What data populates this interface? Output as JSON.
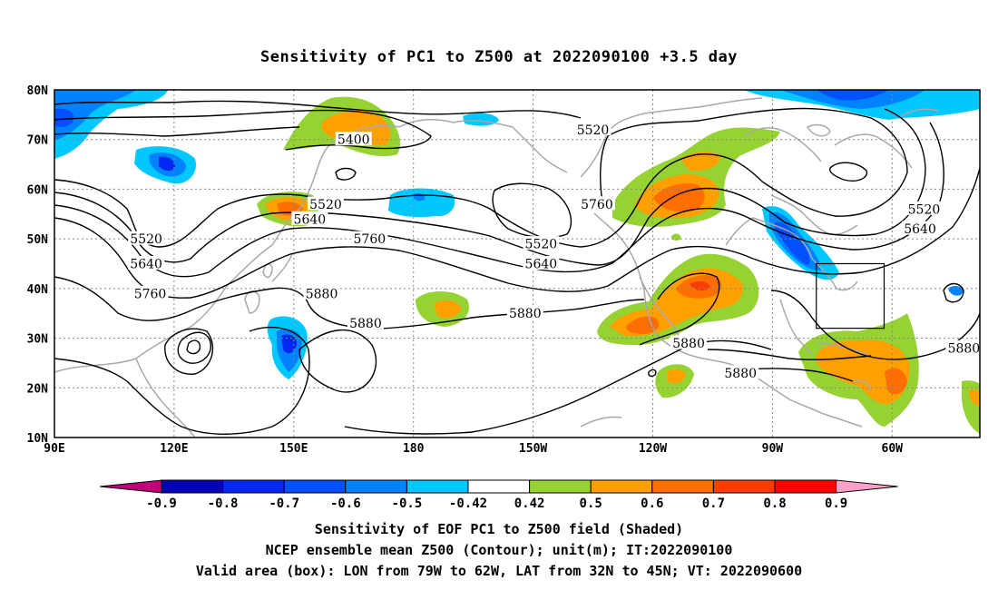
{
  "title": "Sensitivity of PC1 to Z500 at 2022090100 +3.5 day",
  "map": {
    "lon_ticks": [
      "90E",
      "120E",
      "150E",
      "180",
      "150W",
      "120W",
      "90W",
      "60W"
    ],
    "lat_ticks": [
      "80N",
      "70N",
      "60N",
      "50N",
      "40N",
      "30N",
      "20N",
      "10N"
    ],
    "lon_range": [
      90,
      322
    ],
    "lat_range": [
      10,
      80
    ],
    "valid_box": {
      "lon": [
        281,
        298
      ],
      "lat": [
        32,
        45
      ]
    }
  },
  "contour_labels": [
    {
      "text": "5400",
      "lon": 165,
      "lat": 70
    },
    {
      "text": "5520",
      "lon": 225,
      "lat": 72
    },
    {
      "text": "5520",
      "lon": 113,
      "lat": 50
    },
    {
      "text": "5640",
      "lon": 113,
      "lat": 45
    },
    {
      "text": "5760",
      "lon": 114,
      "lat": 39
    },
    {
      "text": "5520",
      "lon": 158,
      "lat": 57
    },
    {
      "text": "5640",
      "lon": 154,
      "lat": 54
    },
    {
      "text": "5760",
      "lon": 169,
      "lat": 50
    },
    {
      "text": "5880",
      "lon": 157,
      "lat": 39
    },
    {
      "text": "5880",
      "lon": 168,
      "lat": 33
    },
    {
      "text": "5760",
      "lon": 226,
      "lat": 57
    },
    {
      "text": "5520",
      "lon": 212,
      "lat": 49
    },
    {
      "text": "5640",
      "lon": 212,
      "lat": 45
    },
    {
      "text": "5880",
      "lon": 208,
      "lat": 35
    },
    {
      "text": "5880",
      "lon": 249,
      "lat": 29
    },
    {
      "text": "5880",
      "lon": 262,
      "lat": 23
    },
    {
      "text": "5520",
      "lon": 308,
      "lat": 56
    },
    {
      "text": "5640",
      "lon": 307,
      "lat": 52
    },
    {
      "text": "5880",
      "lon": 318,
      "lat": 28
    }
  ],
  "colorbar": {
    "labels": [
      "-0.9",
      "-0.8",
      "-0.7",
      "-0.6",
      "-0.5",
      "-0.42",
      "0.42",
      "0.5",
      "0.6",
      "0.7",
      "0.8",
      "0.9"
    ],
    "colors": [
      "#c0007a",
      "#0000b4",
      "#0028f0",
      "#0050ff",
      "#0082ff",
      "#00c8ff",
      "#ffffff",
      "#96d232",
      "#ffa000",
      "#ff6e00",
      "#ff3c00",
      "#ff0000",
      "#ffa0c8"
    ]
  },
  "captions": [
    "Sensitivity of EOF PC1 to Z500 field (Shaded)",
    "NCEP ensemble mean Z500 (Contour); unit(m); IT:2022090100",
    "Valid area (box): LON from 79W to 62W, LAT from 32N to 45N; VT: 2022090600"
  ]
}
